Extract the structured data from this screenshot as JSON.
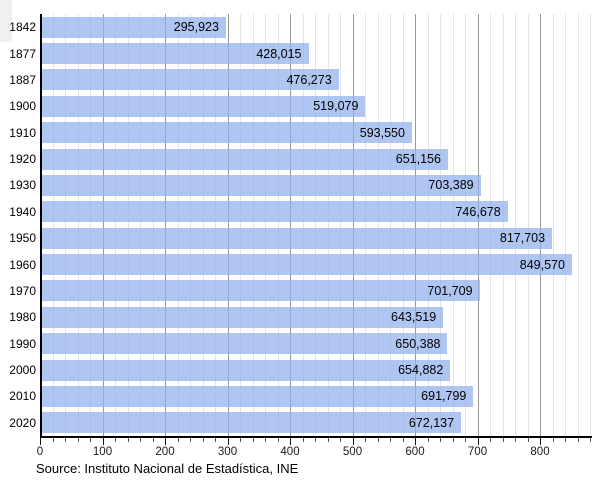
{
  "chart_data": {
    "type": "bar",
    "orientation": "horizontal",
    "title": "",
    "xlabel": "",
    "ylabel": "",
    "categories": [
      "1842",
      "1877",
      "1887",
      "1900",
      "1910",
      "1920",
      "1930",
      "1940",
      "1950",
      "1960",
      "1970",
      "1980",
      "1990",
      "2000",
      "2010",
      "2020"
    ],
    "values": [
      295923,
      428015,
      476273,
      519079,
      593550,
      651156,
      703389,
      746678,
      817703,
      849570,
      701709,
      643519,
      650388,
      654882,
      691799,
      672137
    ],
    "value_labels": [
      "295,923",
      "428,015",
      "476,273",
      "519,079",
      "593,550",
      "651,156",
      "703,389",
      "746,678",
      "817,703",
      "849,570",
      "701,709",
      "643,519",
      "650,388",
      "654,882",
      "691,799",
      "672,137"
    ],
    "x_tick_labels": [
      "0",
      "100",
      "200",
      "300",
      "400",
      "500",
      "600",
      "700",
      "800"
    ],
    "x_ticks_thousands": [
      0,
      100,
      200,
      300,
      400,
      500,
      600,
      700,
      800
    ],
    "xlim_thousands": [
      0,
      880
    ],
    "minor_step_thousands": 20,
    "grid": true,
    "legend": false,
    "colors": {
      "bar": "#8fb0ec",
      "bar_opacity": 0.72,
      "minor_grid": "#e4e4e4",
      "major_grid": "#9a9a9a",
      "axis": "#000000",
      "label_text": "#000000"
    }
  },
  "source": "Source: Instituto Nacional de Estadística, INE"
}
